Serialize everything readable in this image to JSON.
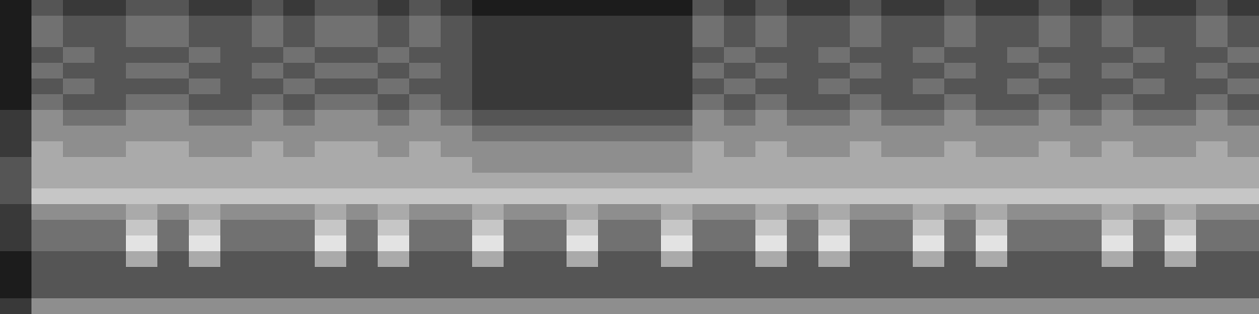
{
  "chart_data": {
    "type": "heatmap",
    "tick_labels": false,
    "color_range": [
      0,
      9
    ],
    "cells": [
      [
        1,
        3,
        2,
        2,
        3,
        3,
        2,
        2,
        3,
        2,
        3,
        3,
        2,
        3,
        2,
        1,
        1,
        1,
        1,
        1,
        1,
        1,
        3,
        2,
        3,
        2,
        2,
        3,
        2,
        2,
        3,
        2,
        2,
        3,
        2,
        3,
        2,
        2,
        3,
        2
      ],
      [
        1,
        4,
        3,
        3,
        4,
        4,
        3,
        3,
        4,
        3,
        4,
        4,
        3,
        4,
        3,
        2,
        2,
        2,
        2,
        2,
        2,
        2,
        4,
        3,
        4,
        3,
        3,
        4,
        3,
        3,
        4,
        3,
        3,
        4,
        3,
        4,
        3,
        3,
        4,
        3
      ],
      [
        1,
        4,
        3,
        3,
        4,
        4,
        3,
        3,
        4,
        3,
        4,
        4,
        3,
        4,
        3,
        2,
        2,
        2,
        2,
        2,
        2,
        2,
        4,
        3,
        4,
        3,
        3,
        4,
        3,
        3,
        4,
        3,
        3,
        4,
        3,
        4,
        3,
        3,
        4,
        3
      ],
      [
        1,
        3,
        4,
        3,
        3,
        3,
        4,
        3,
        3,
        4,
        3,
        3,
        4,
        3,
        3,
        2,
        2,
        2,
        2,
        2,
        2,
        2,
        3,
        4,
        3,
        3,
        4,
        3,
        3,
        4,
        3,
        3,
        4,
        3,
        3,
        3,
        4,
        3,
        3,
        4
      ],
      [
        1,
        4,
        3,
        3,
        4,
        4,
        3,
        3,
        4,
        3,
        4,
        4,
        3,
        4,
        3,
        2,
        2,
        2,
        2,
        2,
        2,
        2,
        4,
        3,
        4,
        3,
        3,
        4,
        3,
        3,
        4,
        3,
        3,
        4,
        3,
        4,
        3,
        3,
        4,
        3
      ],
      [
        1,
        3,
        4,
        3,
        3,
        3,
        4,
        3,
        3,
        4,
        3,
        3,
        4,
        3,
        3,
        2,
        2,
        2,
        2,
        2,
        2,
        2,
        3,
        4,
        3,
        3,
        4,
        3,
        3,
        4,
        3,
        3,
        4,
        3,
        3,
        3,
        4,
        3,
        3,
        4
      ],
      [
        1,
        4,
        3,
        3,
        4,
        4,
        3,
        3,
        4,
        3,
        4,
        4,
        3,
        4,
        3,
        2,
        2,
        2,
        2,
        2,
        2,
        2,
        4,
        3,
        4,
        3,
        3,
        4,
        3,
        3,
        4,
        3,
        3,
        4,
        3,
        4,
        3,
        3,
        4,
        3
      ],
      [
        2,
        5,
        4,
        4,
        5,
        5,
        4,
        4,
        5,
        4,
        5,
        5,
        4,
        5,
        4,
        3,
        3,
        3,
        3,
        3,
        3,
        3,
        5,
        4,
        5,
        4,
        4,
        5,
        4,
        4,
        5,
        4,
        4,
        5,
        4,
        5,
        4,
        4,
        5,
        4
      ],
      [
        2,
        5,
        5,
        5,
        5,
        5,
        5,
        5,
        5,
        5,
        5,
        5,
        5,
        5,
        5,
        4,
        4,
        4,
        4,
        4,
        4,
        4,
        5,
        5,
        5,
        5,
        5,
        5,
        5,
        5,
        5,
        5,
        5,
        5,
        5,
        5,
        5,
        5,
        5,
        5
      ],
      [
        2,
        6,
        5,
        5,
        6,
        6,
        5,
        5,
        6,
        5,
        6,
        6,
        5,
        6,
        5,
        5,
        5,
        5,
        5,
        5,
        5,
        5,
        6,
        5,
        6,
        5,
        5,
        6,
        5,
        5,
        6,
        5,
        5,
        6,
        5,
        6,
        5,
        5,
        6,
        5
      ],
      [
        3,
        6,
        6,
        6,
        6,
        6,
        6,
        6,
        6,
        6,
        6,
        6,
        6,
        6,
        6,
        5,
        5,
        5,
        5,
        5,
        5,
        5,
        6,
        6,
        6,
        6,
        6,
        6,
        6,
        6,
        6,
        6,
        6,
        6,
        6,
        6,
        6,
        6,
        6,
        6
      ],
      [
        3,
        6,
        6,
        6,
        6,
        6,
        6,
        6,
        6,
        6,
        6,
        6,
        6,
        6,
        6,
        6,
        6,
        6,
        6,
        6,
        6,
        6,
        6,
        6,
        6,
        6,
        6,
        6,
        6,
        6,
        6,
        6,
        6,
        6,
        6,
        6,
        6,
        6,
        6,
        6
      ],
      [
        3,
        7,
        7,
        7,
        7,
        7,
        7,
        7,
        7,
        7,
        7,
        7,
        7,
        7,
        7,
        7,
        7,
        7,
        7,
        7,
        7,
        7,
        7,
        7,
        7,
        7,
        7,
        7,
        7,
        7,
        7,
        7,
        7,
        7,
        7,
        7,
        7,
        7,
        7,
        7
      ],
      [
        2,
        5,
        5,
        5,
        6,
        5,
        6,
        5,
        5,
        5,
        6,
        5,
        6,
        5,
        5,
        6,
        5,
        5,
        6,
        5,
        5,
        6,
        5,
        5,
        6,
        5,
        6,
        5,
        5,
        6,
        5,
        6,
        5,
        5,
        5,
        6,
        5,
        6,
        5,
        5
      ],
      [
        2,
        4,
        4,
        4,
        7,
        4,
        7,
        4,
        4,
        4,
        7,
        4,
        7,
        4,
        4,
        7,
        4,
        4,
        7,
        4,
        4,
        7,
        4,
        4,
        7,
        4,
        7,
        4,
        4,
        7,
        4,
        7,
        4,
        4,
        4,
        7,
        4,
        7,
        4,
        4
      ],
      [
        2,
        4,
        4,
        4,
        8,
        4,
        8,
        4,
        4,
        4,
        8,
        4,
        8,
        4,
        4,
        8,
        4,
        4,
        8,
        4,
        4,
        8,
        4,
        4,
        8,
        4,
        8,
        4,
        4,
        8,
        4,
        8,
        4,
        4,
        4,
        8,
        4,
        8,
        4,
        4
      ],
      [
        1,
        3,
        3,
        3,
        6,
        3,
        6,
        3,
        3,
        3,
        6,
        3,
        6,
        3,
        3,
        6,
        3,
        3,
        6,
        3,
        3,
        6,
        3,
        3,
        6,
        3,
        6,
        3,
        3,
        6,
        3,
        6,
        3,
        3,
        3,
        6,
        3,
        6,
        3,
        3
      ],
      [
        1,
        3,
        3,
        3,
        3,
        3,
        3,
        3,
        3,
        3,
        3,
        3,
        3,
        3,
        3,
        3,
        3,
        3,
        3,
        3,
        3,
        3,
        3,
        3,
        3,
        3,
        3,
        3,
        3,
        3,
        3,
        3,
        3,
        3,
        3,
        3,
        3,
        3,
        3,
        3
      ],
      [
        1,
        3,
        3,
        3,
        3,
        3,
        3,
        3,
        3,
        3,
        3,
        3,
        3,
        3,
        3,
        3,
        3,
        3,
        3,
        3,
        3,
        3,
        3,
        3,
        3,
        3,
        3,
        3,
        3,
        3,
        3,
        3,
        3,
        3,
        3,
        3,
        3,
        3,
        3,
        3
      ],
      [
        2,
        5,
        5,
        5,
        5,
        5,
        5,
        5,
        5,
        5,
        5,
        5,
        5,
        5,
        5,
        5,
        5,
        5,
        5,
        5,
        5,
        5,
        5,
        5,
        5,
        5,
        5,
        5,
        5,
        5,
        5,
        5,
        5,
        5,
        5,
        5,
        5,
        5,
        5,
        5
      ]
    ]
  }
}
